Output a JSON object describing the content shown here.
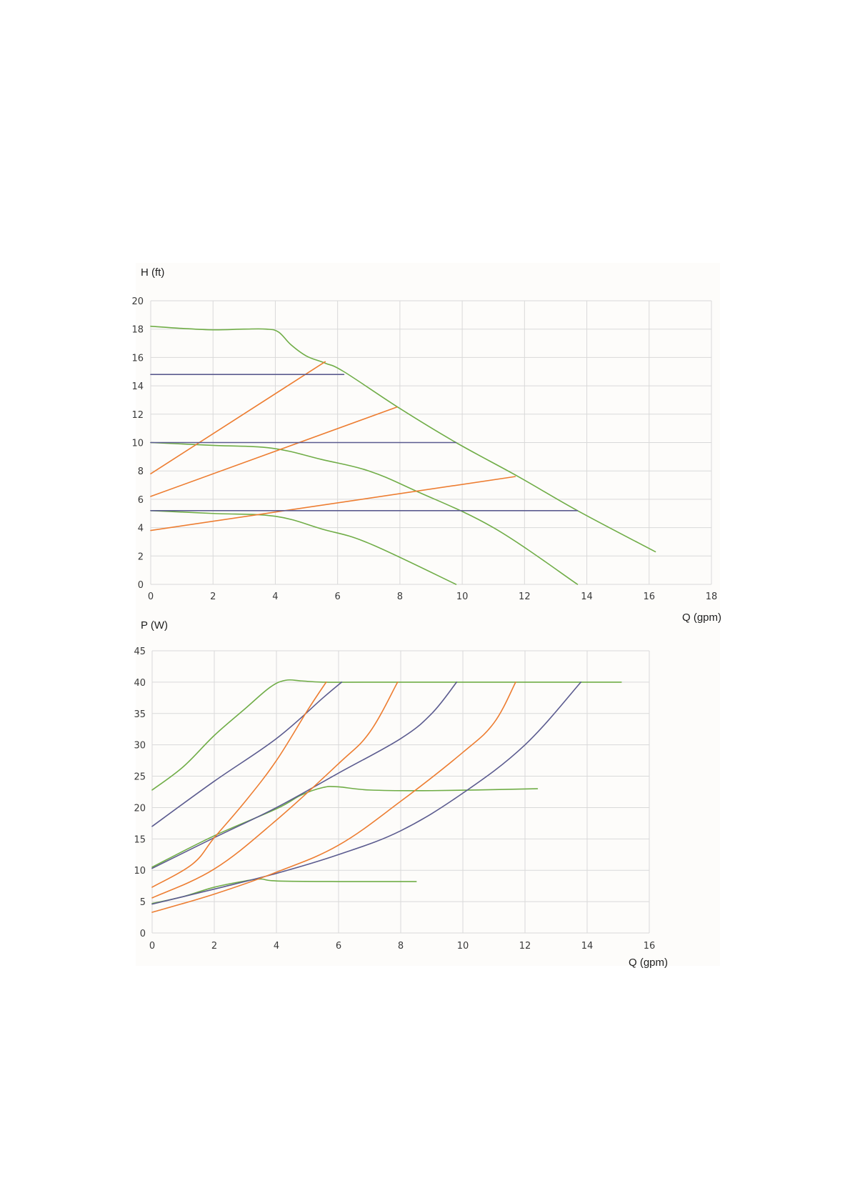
{
  "colors": {
    "green": "#70ad47",
    "orange": "#ed7d31",
    "purple": "#5b5b8f",
    "grid": "#d9d9d9",
    "panel": "#fdfcfa"
  },
  "chart_data": [
    {
      "type": "line",
      "title": "",
      "ylabel": "H (ft)",
      "xlabel": "Q (gpm)",
      "xlim": [
        0,
        18
      ],
      "ylim": [
        0,
        20
      ],
      "xticks": [
        "0",
        "2",
        "4",
        "6",
        "8",
        "10",
        "12",
        "14",
        "16",
        "18"
      ],
      "yticks": [
        "0",
        "2",
        "4",
        "6",
        "8",
        "10",
        "12",
        "14",
        "16",
        "18",
        "20"
      ],
      "grid": true,
      "legend": "none",
      "series": [
        {
          "color": "green",
          "points": [
            [
              0,
              18.2
            ],
            [
              1,
              18.05
            ],
            [
              2,
              17.95
            ],
            [
              3,
              18.0
            ],
            [
              3.7,
              18.0
            ],
            [
              4.1,
              17.8
            ],
            [
              4.5,
              16.9
            ],
            [
              5,
              16.1
            ],
            [
              5.6,
              15.6
            ],
            [
              6.2,
              15.0
            ],
            [
              8,
              12.4
            ],
            [
              9.8,
              10.0
            ],
            [
              11.8,
              7.6
            ],
            [
              13.7,
              5.2
            ],
            [
              16.2,
              2.3
            ]
          ]
        },
        {
          "color": "green",
          "points": [
            [
              0,
              10.0
            ],
            [
              2,
              9.8
            ],
            [
              3.9,
              9.6
            ],
            [
              5.5,
              8.8
            ],
            [
              7,
              8.0
            ],
            [
              8.5,
              6.6
            ],
            [
              11,
              4.0
            ],
            [
              13.7,
              0
            ]
          ]
        },
        {
          "color": "green",
          "points": [
            [
              0,
              5.2
            ],
            [
              2,
              5.0
            ],
            [
              4,
              4.8
            ],
            [
              5.5,
              3.9
            ],
            [
              7,
              2.9
            ],
            [
              9.8,
              0
            ]
          ]
        },
        {
          "color": "orange",
          "points": [
            [
              0,
              7.8
            ],
            [
              5.6,
              15.7
            ]
          ]
        },
        {
          "color": "orange",
          "points": [
            [
              0,
              6.2
            ],
            [
              7.9,
              12.5
            ]
          ]
        },
        {
          "color": "orange",
          "points": [
            [
              0,
              3.8
            ],
            [
              11.7,
              7.6
            ]
          ]
        },
        {
          "color": "purple",
          "points": [
            [
              0,
              14.8
            ],
            [
              6.2,
              14.8
            ]
          ]
        },
        {
          "color": "purple",
          "points": [
            [
              0,
              10.0
            ],
            [
              9.8,
              10.0
            ]
          ]
        },
        {
          "color": "purple",
          "points": [
            [
              0,
              5.2
            ],
            [
              13.7,
              5.2
            ]
          ]
        }
      ]
    },
    {
      "type": "line",
      "title": "",
      "ylabel": "P (W)",
      "xlabel": "Q (gpm)",
      "xlim": [
        0,
        16
      ],
      "ylim": [
        0,
        45
      ],
      "xticks": [
        "0",
        "2",
        "4",
        "6",
        "8",
        "10",
        "12",
        "14",
        "16"
      ],
      "yticks": [
        "0",
        "5",
        "10",
        "15",
        "20",
        "25",
        "30",
        "35",
        "40",
        "45"
      ],
      "grid": true,
      "legend": "none",
      "series": [
        {
          "color": "green",
          "points": [
            [
              0,
              22.8
            ],
            [
              1,
              26.5
            ],
            [
              2,
              31.5
            ],
            [
              3,
              35.8
            ],
            [
              3.8,
              39.2
            ],
            [
              4.3,
              40.3
            ],
            [
              4.8,
              40.2
            ],
            [
              5.5,
              40.0
            ],
            [
              7,
              40.0
            ],
            [
              15.1,
              40.0
            ]
          ]
        },
        {
          "color": "green",
          "points": [
            [
              0,
              10.5
            ],
            [
              2,
              15.5
            ],
            [
              4,
              19.8
            ],
            [
              4.8,
              22.0
            ],
            [
              5.5,
              23.2
            ],
            [
              6,
              23.3
            ],
            [
              7,
              22.8
            ],
            [
              9,
              22.7
            ],
            [
              12.4,
              23.0
            ]
          ]
        },
        {
          "color": "green",
          "points": [
            [
              0,
              4.7
            ],
            [
              1,
              5.8
            ],
            [
              2,
              7.3
            ],
            [
              3,
              8.3
            ],
            [
              3.5,
              8.6
            ],
            [
              4,
              8.3
            ],
            [
              6,
              8.2
            ],
            [
              8.5,
              8.2
            ]
          ]
        },
        {
          "color": "purple",
          "points": [
            [
              0,
              17.0
            ],
            [
              2,
              24.2
            ],
            [
              4,
              31.0
            ],
            [
              5.5,
              37.5
            ],
            [
              6.1,
              40.0
            ]
          ]
        },
        {
          "color": "purple",
          "points": [
            [
              0,
              10.3
            ],
            [
              2,
              15.2
            ],
            [
              4,
              20.0
            ],
            [
              6,
              25.5
            ],
            [
              8,
              31.0
            ],
            [
              9,
              35.0
            ],
            [
              9.8,
              40.0
            ]
          ]
        },
        {
          "color": "purple",
          "points": [
            [
              0,
              4.6
            ],
            [
              2,
              7.0
            ],
            [
              4,
              9.5
            ],
            [
              6,
              12.5
            ],
            [
              8,
              16.3
            ],
            [
              10,
              22.3
            ],
            [
              12,
              30.0
            ],
            [
              13.8,
              40.0
            ]
          ]
        },
        {
          "color": "orange",
          "points": [
            [
              0,
              7.3
            ],
            [
              1.3,
              11.0
            ],
            [
              2,
              15.2
            ],
            [
              3,
              21.0
            ],
            [
              4,
              27.5
            ],
            [
              5,
              35.5
            ],
            [
              5.6,
              40.0
            ]
          ]
        },
        {
          "color": "orange",
          "points": [
            [
              0,
              5.6
            ],
            [
              2,
              10.2
            ],
            [
              4,
              18.0
            ],
            [
              6,
              27.0
            ],
            [
              7,
              32.0
            ],
            [
              7.9,
              40.0
            ]
          ]
        },
        {
          "color": "orange",
          "points": [
            [
              0,
              3.3
            ],
            [
              2,
              6.2
            ],
            [
              4,
              9.7
            ],
            [
              6,
              14.0
            ],
            [
              8,
              21.0
            ],
            [
              10,
              28.8
            ],
            [
              11,
              33.5
            ],
            [
              11.7,
              40.0
            ]
          ]
        }
      ]
    }
  ]
}
